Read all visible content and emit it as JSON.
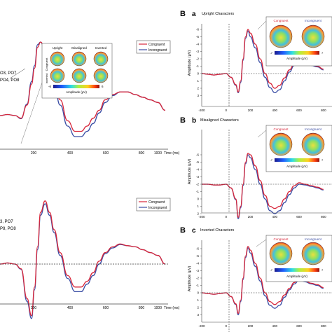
{
  "colors": {
    "congruent": "#d8263a",
    "incongruent": "#3b4ea5"
  },
  "left_panels": {
    "top": {
      "channel_line1": "O3, PO7",
      "channel_line2": "PO4, PO8",
      "legend": [
        "Congruent",
        "Incongruent"
      ],
      "x_ticks": [
        "200",
        "400",
        "600",
        "800",
        "1000"
      ],
      "x_unit": "Time (ms)",
      "topo_col_labels": [
        "Upright",
        "Misaligned",
        "Inverted"
      ],
      "topo_row_labels": [
        "Congruent",
        "Inverted"
      ],
      "colorbar_min": "-6",
      "colorbar_max": "6",
      "colorbar_label": "Amplitude (μV)"
    },
    "bottom": {
      "channel_line1": "3, PO7",
      "channel_line2": "P8, PO8",
      "legend": [
        "Congruent",
        "Incongruent"
      ],
      "x_ticks": [
        "200",
        "400",
        "600",
        "800",
        "1000"
      ],
      "x_unit": "Time (ms)"
    }
  },
  "right_panels": [
    {
      "letter": "B",
      "sub": "a",
      "title": "Upright Characters",
      "legend": [
        "Congruent",
        "Incongruent"
      ],
      "cb_min": "-7",
      "cb_max": "7",
      "cb_label": "Amplitude (μV)"
    },
    {
      "letter": "B",
      "sub": "b",
      "title": "Misaligned Characters",
      "legend": [
        "Congruent",
        "Incongruent"
      ],
      "cb_min": "-7",
      "cb_max": "7",
      "cb_label": "Amplitude (μV)"
    },
    {
      "letter": "B",
      "sub": "c",
      "title": "Inverted Characters",
      "legend": [
        "Congruent",
        "Incongruent"
      ],
      "cb_min": "-7",
      "cb_max": "7",
      "cb_label": "Amplitude (μV)"
    }
  ],
  "chart_data": [
    {
      "type": "line",
      "panel": "left-top",
      "x_ticks": [
        200,
        400,
        600,
        800,
        1000
      ],
      "xlabel": "Time (ms)",
      "series": [
        {
          "name": "Congruent",
          "x": [
            -100,
            -50,
            0,
            40,
            80,
            110,
            130,
            150,
            170,
            200,
            230,
            260,
            300,
            350,
            400,
            440,
            480,
            520,
            560,
            600,
            650,
            700,
            750,
            800,
            850,
            900,
            950,
            1000
          ],
          "y": [
            0,
            0.2,
            0,
            -0.5,
            2,
            6,
            9,
            13,
            14,
            13,
            10,
            7,
            3,
            -1,
            -3,
            -3,
            -2,
            -0.5,
            1,
            3,
            4,
            4.5,
            4.5,
            4,
            3.5,
            3,
            2.5,
            1
          ]
        },
        {
          "name": "Incongruent",
          "x": [
            -100,
            -50,
            0,
            40,
            80,
            110,
            130,
            150,
            170,
            200,
            230,
            260,
            300,
            350,
            400,
            440,
            480,
            520,
            560,
            600,
            650,
            700,
            750,
            800,
            850,
            900,
            950,
            1000
          ],
          "y": [
            0,
            0.2,
            0,
            -0.6,
            2.2,
            6.5,
            9.5,
            13.5,
            14,
            12.5,
            9,
            6,
            2,
            -2,
            -4,
            -4,
            -3,
            -1.5,
            0.5,
            2.5,
            3.8,
            4.5,
            4.5,
            4,
            3.5,
            3,
            2.5,
            1
          ]
        }
      ]
    },
    {
      "type": "line",
      "panel": "left-bottom",
      "x_ticks": [
        200,
        400,
        600,
        800,
        1000
      ],
      "xlabel": "Time (ms)",
      "series": [
        {
          "name": "Congruent",
          "x": [
            -100,
            -50,
            0,
            40,
            80,
            110,
            130,
            150,
            170,
            200,
            230,
            260,
            300,
            350,
            400,
            440,
            480,
            520,
            560,
            600,
            650,
            700,
            750,
            800,
            850,
            900,
            950,
            1000
          ],
          "y": [
            0,
            0.2,
            0,
            -0.8,
            -6,
            -9,
            -4,
            3,
            9,
            11,
            9,
            6,
            2,
            -2,
            -4,
            -4,
            -3,
            -1.5,
            0.5,
            2,
            3,
            3.5,
            3.2,
            3,
            2.5,
            2,
            1.5,
            0
          ]
        },
        {
          "name": "Incongruent",
          "x": [
            -100,
            -50,
            0,
            40,
            80,
            110,
            130,
            150,
            170,
            200,
            230,
            260,
            300,
            350,
            400,
            440,
            480,
            520,
            560,
            600,
            650,
            700,
            750,
            800,
            850,
            900,
            950,
            1000
          ],
          "y": [
            0,
            0.2,
            0,
            -0.9,
            -6.5,
            -9.5,
            -4.5,
            2.5,
            8.5,
            10.5,
            8.5,
            5.5,
            1.5,
            -2.5,
            -4.8,
            -4.8,
            -3.5,
            -2,
            0,
            1.8,
            2.8,
            3.4,
            3.2,
            3,
            2.5,
            2,
            1.5,
            0
          ]
        }
      ]
    },
    {
      "type": "line",
      "panel": "B-a",
      "title": "Upright Characters",
      "xlabel": "",
      "ylabel": "Amplitude (μV)",
      "x_ticks": [
        -200,
        0,
        200,
        400,
        600,
        800
      ],
      "y_ticks": [
        -6,
        -5,
        -4,
        -3,
        -2,
        -1,
        0,
        1,
        2,
        3
      ],
      "ylim_top": -6.5,
      "ylim_bottom": 3.5,
      "series": [
        {
          "name": "Congruent",
          "x": [
            -200,
            -150,
            -100,
            -50,
            0,
            40,
            80,
            100,
            120,
            140,
            160,
            180,
            200,
            240,
            280,
            320,
            360,
            400,
            440,
            480,
            520,
            560,
            600,
            650,
            700,
            750,
            800
          ],
          "y": [
            0,
            0.1,
            0.2,
            0.1,
            0,
            0.5,
            1.5,
            2.5,
            1,
            -2,
            -5,
            -6,
            -5.5,
            -4,
            -2,
            0,
            1.3,
            2,
            1.6,
            0.6,
            -0.5,
            -1.3,
            -1.8,
            -1.5,
            -1.2,
            -1,
            -0.6
          ]
        },
        {
          "name": "Incongruent",
          "x": [
            -200,
            -150,
            -100,
            -50,
            0,
            40,
            80,
            100,
            120,
            140,
            160,
            180,
            200,
            240,
            280,
            320,
            360,
            400,
            440,
            480,
            520,
            560,
            600,
            650,
            700,
            750,
            800
          ],
          "y": [
            0,
            0.1,
            0.2,
            0.1,
            0,
            0.5,
            1.6,
            2.6,
            1.2,
            -1.8,
            -4.8,
            -5.8,
            -5,
            -3.5,
            -1.5,
            0.5,
            1.9,
            2.6,
            2.2,
            1,
            -0.2,
            -1.1,
            -1.6,
            -1.4,
            -1.1,
            -0.9,
            -0.5
          ]
        }
      ]
    },
    {
      "type": "line",
      "panel": "B-b",
      "title": "Misaligned Characters",
      "xlabel": "",
      "ylabel": "Amplitude (μV)",
      "x_ticks": [
        -200,
        0,
        200,
        400,
        600,
        800
      ],
      "y_ticks": [
        -6,
        -5,
        -4,
        -3,
        -2,
        -1,
        0,
        1,
        2,
        3
      ],
      "ylim_top": -6.5,
      "ylim_bottom": 3.5,
      "series": [
        {
          "name": "Congruent",
          "x": [
            -200,
            -150,
            -100,
            -50,
            0,
            40,
            80,
            100,
            120,
            140,
            160,
            180,
            200,
            240,
            280,
            320,
            360,
            400,
            440,
            480,
            520,
            560,
            600,
            650,
            700,
            750,
            800
          ],
          "y": [
            -2,
            -2,
            -1.9,
            -1.9,
            -2,
            -1.5,
            0,
            2.5,
            1,
            -2,
            -5,
            -6.2,
            -6,
            -4.5,
            -2.5,
            -0.5,
            1,
            1.3,
            1,
            0,
            -1,
            -1.8,
            -2.2,
            -2,
            -1.8,
            -1.6,
            -1.3
          ]
        },
        {
          "name": "Incongruent",
          "x": [
            -200,
            -150,
            -100,
            -50,
            0,
            40,
            80,
            100,
            120,
            140,
            160,
            180,
            200,
            240,
            280,
            320,
            360,
            400,
            440,
            480,
            520,
            560,
            600,
            650,
            700,
            750,
            800
          ],
          "y": [
            -2,
            -2,
            -1.9,
            -1.9,
            -2,
            -1.5,
            0.1,
            2.7,
            1.2,
            -1.8,
            -4.8,
            -6,
            -5.6,
            -4,
            -2,
            0,
            1.6,
            2,
            1.6,
            0.5,
            -0.6,
            -1.5,
            -2,
            -1.9,
            -1.7,
            -1.5,
            -1.2
          ]
        }
      ]
    },
    {
      "type": "line",
      "panel": "B-c",
      "title": "Inverted Characters",
      "xlabel": "",
      "ylabel": "Amplitude (μV)",
      "x_ticks": [
        -200,
        0,
        200,
        400,
        600,
        800
      ],
      "y_ticks": [
        -6,
        -5,
        -4,
        -3,
        -2,
        -1,
        0,
        1,
        2,
        3
      ],
      "ylim_top": -6.5,
      "ylim_bottom": 3.5,
      "series": [
        {
          "name": "Congruent",
          "x": [
            -200,
            -150,
            -100,
            -50,
            0,
            40,
            80,
            100,
            120,
            140,
            160,
            180,
            200,
            240,
            280,
            320,
            360,
            400,
            440,
            480,
            520,
            560,
            600,
            650,
            700,
            750,
            800
          ],
          "y": [
            0,
            0.1,
            0.2,
            0.1,
            0,
            0.5,
            1.5,
            2.8,
            1,
            -2,
            -5,
            -6.3,
            -5.8,
            -4,
            -2,
            0,
            1.2,
            1.6,
            1.2,
            0.3,
            -0.6,
            -1.4,
            -1.9,
            -1.6,
            -1.3,
            -1.1,
            -0.7
          ]
        },
        {
          "name": "Incongruent",
          "x": [
            -200,
            -150,
            -100,
            -50,
            0,
            40,
            80,
            100,
            120,
            140,
            160,
            180,
            200,
            240,
            280,
            320,
            360,
            400,
            440,
            480,
            520,
            560,
            600,
            650,
            700,
            750,
            800
          ],
          "y": [
            0,
            0.1,
            0.2,
            0.1,
            0,
            0.5,
            1.6,
            3,
            1.2,
            -1.8,
            -4.8,
            -6.1,
            -5.4,
            -3.6,
            -1.6,
            0.4,
            1.7,
            2.1,
            1.7,
            0.6,
            -0.4,
            -1.2,
            -1.7,
            -1.5,
            -1.2,
            -1,
            -0.6
          ]
        }
      ]
    }
  ]
}
